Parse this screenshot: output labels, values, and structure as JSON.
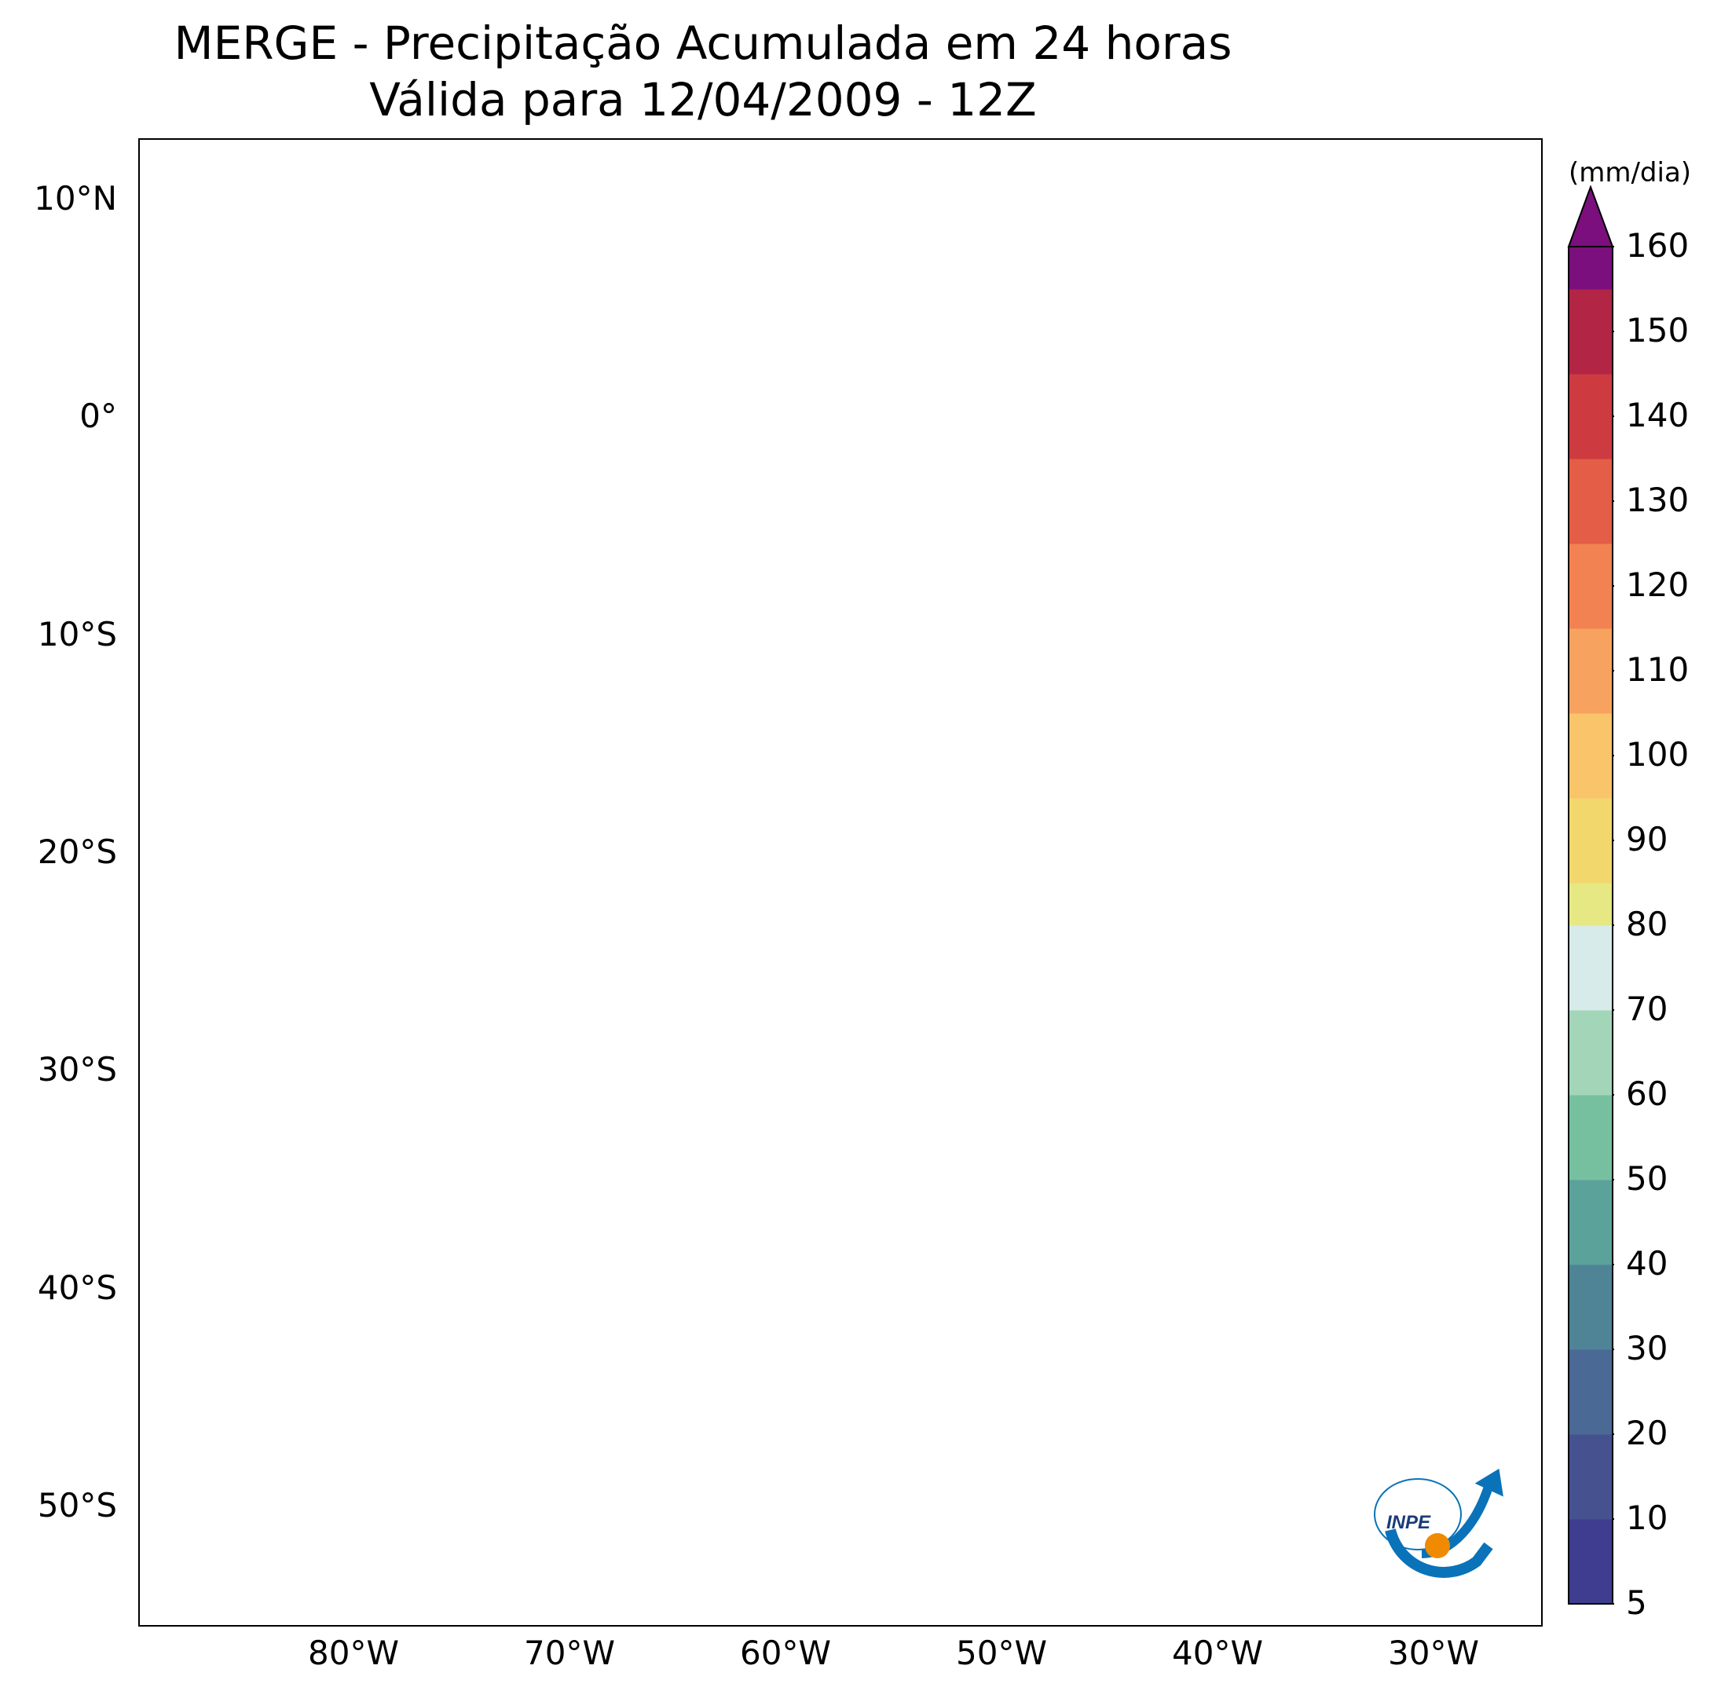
{
  "title": {
    "line1": "MERGE - Precipitação Acumulada em 24 horas",
    "line2": "Válida para 12/04/2009 - 12Z"
  },
  "map": {
    "product": "MERGE precipitation",
    "lat_labels": [
      "10°N",
      "0°",
      "10°S",
      "20°S",
      "30°S",
      "40°S",
      "50°S"
    ],
    "lon_labels": [
      "80°W",
      "70°W",
      "60°W",
      "50°W",
      "40°W",
      "30°W"
    ],
    "extent": {
      "lon_min": -90,
      "lon_max": -25,
      "lat_min": -56,
      "lat_max": 13
    }
  },
  "colorbar": {
    "unit": "(mm/dia)",
    "tick_labels": [
      "5",
      "10",
      "20",
      "30",
      "40",
      "50",
      "60",
      "70",
      "80",
      "90",
      "100",
      "110",
      "120",
      "130",
      "140",
      "150",
      "160"
    ],
    "extend": "max",
    "colors": [
      "#3f3d8f",
      "#45528f",
      "#4a6a95",
      "#4f8396",
      "#5aa29a",
      "#76c0a0",
      "#a3d6b8",
      "#d6ebea",
      "#e6e883",
      "#f2d76d",
      "#f9c46a",
      "#f7a35f",
      "#f28252",
      "#e45d46",
      "#cd3b40",
      "#b22544",
      "#7b0f7d"
    ]
  },
  "logo": {
    "text": "INPE",
    "icon": "inpe-logo-icon"
  }
}
